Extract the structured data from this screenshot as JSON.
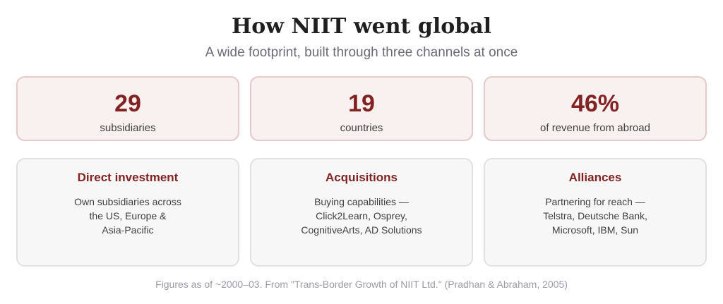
{
  "title": "How NIIT went global",
  "subtitle": "A wide footprint, built through three channels at once",
  "stats": [
    {
      "value": "29",
      "label": "subsidiaries"
    },
    {
      "value": "19",
      "label": "countries"
    },
    {
      "value": "46%",
      "label": "of revenue from abroad"
    }
  ],
  "channels": [
    {
      "title": "Direct investment",
      "lines": [
        "Own subsidiaries across",
        "the US, Europe &",
        "Asia-Pacific"
      ]
    },
    {
      "title": "Acquisitions",
      "lines": [
        "Buying capabilities —",
        "Click2Learn, Osprey,",
        "CognitiveArts, AD Solutions"
      ]
    },
    {
      "title": "Alliances",
      "lines": [
        "Partnering for reach —",
        "Telstra, Deutsche Bank,",
        "Microsoft, IBM, Sun"
      ]
    }
  ],
  "footer": "Figures as of ~2000–03. From \"Trans-Border Growth of NIIT Ltd.\" (Pradhan & Abraham, 2005)",
  "colors": {
    "accent": "#832222",
    "stat_card_bg": "#f9f0f0",
    "stat_card_border": "#e3c9c9",
    "channel_card_bg": "#f7f7f7",
    "channel_card_border": "#e1e1e1"
  }
}
